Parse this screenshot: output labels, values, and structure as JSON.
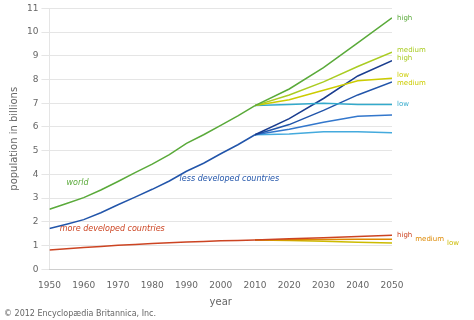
{
  "chart_data": {
    "type": "line",
    "xlabel": "year",
    "ylabel": "population in billions",
    "xlim": [
      1950,
      2050
    ],
    "ylim": [
      0,
      11
    ],
    "xticks": [
      1950,
      1960,
      1970,
      1980,
      1990,
      2000,
      2010,
      2020,
      2030,
      2040,
      2050
    ],
    "yticks": [
      0,
      1,
      2,
      3,
      4,
      5,
      6,
      7,
      8,
      9,
      10,
      11
    ],
    "grid": "y",
    "legend": false,
    "source": "© 2012 Encyclopædia Britannica, Inc.",
    "series": [
      {
        "color": "#5aaa3a",
        "x": [
          1950,
          1955,
          1960,
          1965,
          1970,
          1975,
          1980,
          1985,
          1990,
          1995,
          2000,
          2005,
          2010
        ],
        "values": [
          2.53,
          2.77,
          3.02,
          3.34,
          3.7,
          4.07,
          4.43,
          4.83,
          5.31,
          5.67,
          6.07,
          6.47,
          6.9
        ]
      },
      {
        "color": "#2255aa",
        "x": [
          1950,
          1955,
          1960,
          1965,
          1970,
          1975,
          1980,
          1985,
          1990,
          1995,
          2000,
          2005,
          2010
        ],
        "values": [
          1.72,
          1.9,
          2.09,
          2.38,
          2.72,
          3.04,
          3.37,
          3.72,
          4.13,
          4.47,
          4.87,
          5.25,
          5.67
        ]
      },
      {
        "color": "#cc4422",
        "x": [
          1950,
          1955,
          1960,
          1965,
          1970,
          1975,
          1980,
          1985,
          1990,
          1995,
          2000,
          2005,
          2010
        ],
        "values": [
          0.813,
          0.867,
          0.916,
          0.961,
          1.007,
          1.047,
          1.083,
          1.113,
          1.148,
          1.171,
          1.195,
          1.209,
          1.227
        ]
      },
      {
        "color": "#5aaa3a",
        "x": [
          2010,
          2020,
          2030,
          2040,
          2050
        ],
        "values": [
          6.9,
          7.6,
          8.5,
          9.55,
          10.6
        ]
      },
      {
        "color": "#aacc22",
        "x": [
          2010,
          2020,
          2030,
          2040,
          2050
        ],
        "values": [
          6.9,
          7.35,
          7.9,
          8.55,
          9.15
        ]
      },
      {
        "color": "#cccc00",
        "x": [
          2010,
          2020,
          2030,
          2040,
          2050
        ],
        "values": [
          6.9,
          7.15,
          7.55,
          7.95,
          8.05
        ]
      },
      {
        "color": "#33aacc",
        "x": [
          2010,
          2020,
          2030,
          2040,
          2050
        ],
        "values": [
          6.9,
          6.95,
          7.0,
          6.95,
          6.95
        ]
      },
      {
        "color": "#1a3d8f",
        "x": [
          2010,
          2020,
          2030,
          2040,
          2050
        ],
        "values": [
          5.67,
          6.35,
          7.2,
          8.15,
          8.8
        ]
      },
      {
        "color": "#2255aa",
        "x": [
          2010,
          2020,
          2030,
          2040,
          2050
        ],
        "values": [
          5.67,
          6.1,
          6.7,
          7.35,
          7.9
        ]
      },
      {
        "color": "#3377cc",
        "x": [
          2010,
          2020,
          2030,
          2040,
          2050
        ],
        "values": [
          5.67,
          5.9,
          6.2,
          6.45,
          6.5
        ]
      },
      {
        "color": "#44aadd",
        "x": [
          2010,
          2020,
          2030,
          2040,
          2050
        ],
        "values": [
          5.67,
          5.7,
          5.8,
          5.8,
          5.75
        ]
      },
      {
        "color": "#cc4422",
        "x": [
          2010,
          2020,
          2030,
          2040,
          2050
        ],
        "values": [
          1.227,
          1.28,
          1.33,
          1.38,
          1.43
        ]
      },
      {
        "color": "#dd8800",
        "x": [
          2010,
          2020,
          2030,
          2040,
          2050
        ],
        "values": [
          1.227,
          1.245,
          1.255,
          1.26,
          1.26
        ]
      },
      {
        "color": "#ccbb00",
        "x": [
          2010,
          2020,
          2030,
          2040,
          2050
        ],
        "values": [
          1.227,
          1.21,
          1.18,
          1.14,
          1.1
        ]
      }
    ],
    "annotations": [
      {
        "text": "world",
        "x": 1955,
        "y": 3.55,
        "color": "#5aaa3a"
      },
      {
        "text": "less developed countries",
        "x": 1988,
        "y": 3.7,
        "color": "#2255aa"
      },
      {
        "text": "more developed countries",
        "x": 1953,
        "y": 1.6,
        "color": "#cc4422"
      },
      {
        "text": "high",
        "x": 2050,
        "y": 10.6,
        "color": "#5aaa3a"
      },
      {
        "text": "medium",
        "x": 2050,
        "y": 9.25,
        "color": "#aacc22"
      },
      {
        "text": "high",
        "x": 2050,
        "y": 8.9,
        "color": "#aacc22"
      },
      {
        "text": "low",
        "x": 2050,
        "y": 8.2,
        "color": "#cccc00"
      },
      {
        "text": "medium",
        "x": 2050,
        "y": 7.85,
        "color": "#cccc00"
      },
      {
        "text": "low",
        "x": 2050,
        "y": 6.95,
        "color": "#33aacc"
      },
      {
        "text": "high",
        "x": 2050,
        "y": 1.43,
        "color": "#cc4422"
      },
      {
        "text": "medium",
        "x": 2050,
        "y": 1.26,
        "color": "#dd8800"
      },
      {
        "text": "low",
        "x": 2050,
        "y": 1.1,
        "color": "#ccbb00"
      }
    ]
  }
}
